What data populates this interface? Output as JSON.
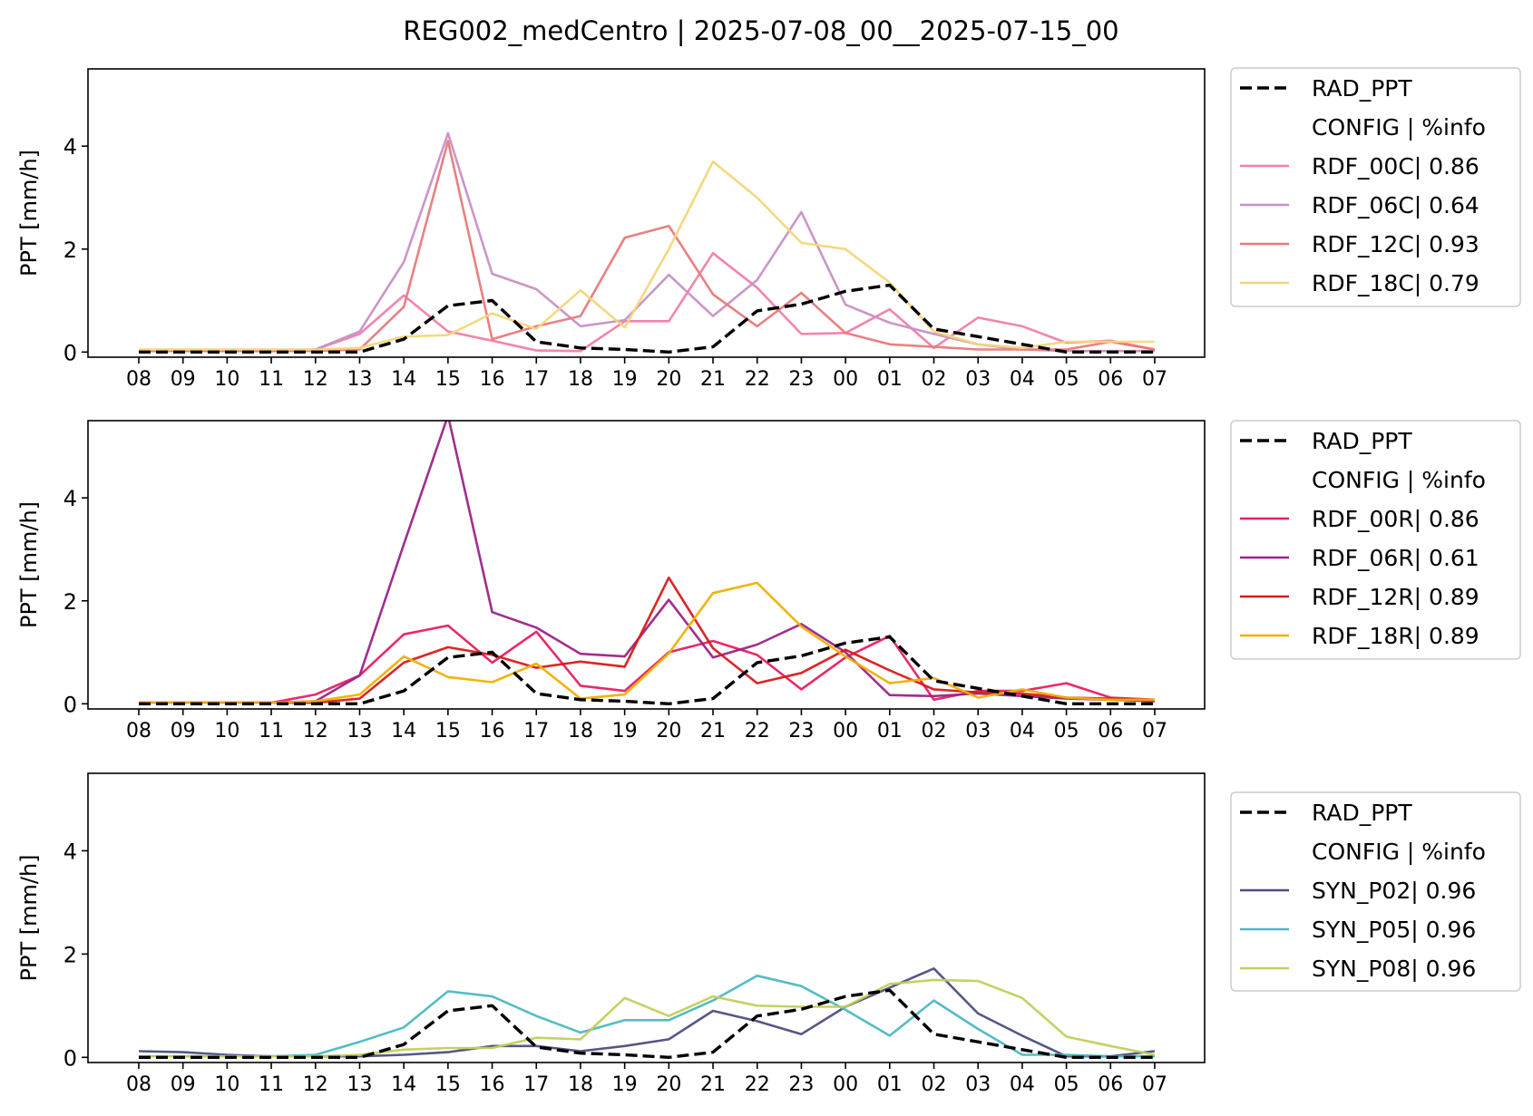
{
  "title": "REG002_medCentro | 2025-07-08_00__2025-07-15_00",
  "chart_data": [
    {
      "type": "line",
      "ylabel": "PPT [mm/h]",
      "ylim": [
        -0.1,
        5.5
      ],
      "yticks": [
        0,
        2,
        4
      ],
      "categories": [
        "08",
        "09",
        "10",
        "11",
        "12",
        "13",
        "14",
        "15",
        "16",
        "17",
        "18",
        "19",
        "20",
        "21",
        "22",
        "23",
        "00",
        "01",
        "02",
        "03",
        "04",
        "05",
        "06",
        "07"
      ],
      "legend_header": "CONFIG  | %info",
      "series": [
        {
          "name": "RAD_PPT",
          "color": "#000000",
          "dashed": true,
          "values": [
            0,
            0,
            0,
            0,
            0,
            0,
            0.25,
            0.9,
            1.0,
            0.2,
            0.08,
            0.05,
            0.0,
            0.1,
            0.8,
            0.93,
            1.18,
            1.3,
            0.45,
            0.3,
            0.15,
            0,
            0,
            0
          ]
        },
        {
          "name": "RDF_00C| 0.86",
          "color": "#f07eaa",
          "dashed": false,
          "values": [
            0.02,
            0.02,
            0.02,
            0.02,
            0.05,
            0.35,
            1.1,
            0.4,
            0.22,
            0.03,
            0.02,
            0.6,
            0.6,
            1.92,
            1.25,
            0.35,
            0.37,
            0.83,
            0.08,
            0.67,
            0.5,
            0.18,
            0.22,
            0.05
          ]
        },
        {
          "name": "RDF_06C| 0.64",
          "color": "#c790c3",
          "dashed": false,
          "values": [
            0.02,
            0.02,
            0.02,
            0.02,
            0.05,
            0.4,
            1.75,
            4.25,
            1.52,
            1.22,
            0.5,
            0.62,
            1.5,
            0.7,
            1.4,
            2.72,
            0.92,
            0.57,
            0.35,
            0.15,
            0.05,
            0.02,
            0.02,
            0.02
          ]
        },
        {
          "name": "RDF_12C| 0.93",
          "color": "#e8797a",
          "dashed": false,
          "values": [
            0.02,
            0.02,
            0.02,
            0.02,
            0.02,
            0.05,
            0.88,
            4.1,
            0.25,
            0.5,
            0.7,
            2.22,
            2.45,
            1.12,
            0.5,
            1.15,
            0.37,
            0.15,
            0.1,
            0.05,
            0.05,
            0.05,
            0.2,
            0.05
          ]
        },
        {
          "name": "RDF_18C| 0.79",
          "color": "#f5d57a",
          "dashed": false,
          "values": [
            0.05,
            0.05,
            0.05,
            0.05,
            0.05,
            0.08,
            0.3,
            0.33,
            0.75,
            0.45,
            1.2,
            0.48,
            2.0,
            3.7,
            3.0,
            2.12,
            2.0,
            1.35,
            0.4,
            0.15,
            0.08,
            0.2,
            0.2,
            0.2
          ]
        }
      ]
    },
    {
      "type": "line",
      "ylabel": "PPT [mm/h]",
      "ylim": [
        -0.1,
        5.5
      ],
      "yticks": [
        0,
        2,
        4
      ],
      "categories": [
        "08",
        "09",
        "10",
        "11",
        "12",
        "13",
        "14",
        "15",
        "16",
        "17",
        "18",
        "19",
        "20",
        "21",
        "22",
        "23",
        "00",
        "01",
        "02",
        "03",
        "04",
        "05",
        "06",
        "07"
      ],
      "legend_header": "CONFIG  | %info",
      "series": [
        {
          "name": "RAD_PPT",
          "color": "#000000",
          "dashed": true,
          "values": [
            0,
            0,
            0,
            0,
            0,
            0,
            0.25,
            0.9,
            1.0,
            0.2,
            0.08,
            0.05,
            0.0,
            0.1,
            0.8,
            0.93,
            1.18,
            1.3,
            0.45,
            0.3,
            0.15,
            0,
            0,
            0
          ]
        },
        {
          "name": "RDF_00R| 0.86",
          "color": "#e81d62",
          "dashed": false,
          "values": [
            0.02,
            0.02,
            0.02,
            0.02,
            0.18,
            0.55,
            1.35,
            1.52,
            0.8,
            1.4,
            0.35,
            0.25,
            1.0,
            1.22,
            0.95,
            0.28,
            0.9,
            1.32,
            0.08,
            0.25,
            0.25,
            0.4,
            0.12,
            0.08
          ]
        },
        {
          "name": "RDF_06R| 0.61",
          "color": "#9b2389",
          "dashed": false,
          "values": [
            0.02,
            0.02,
            0.02,
            0.02,
            0.05,
            0.55,
            3.1,
            5.6,
            1.78,
            1.48,
            0.97,
            0.92,
            2.02,
            0.9,
            1.15,
            1.55,
            1.0,
            0.17,
            0.15,
            0.2,
            0.15,
            0.1,
            0.08,
            0.05
          ]
        },
        {
          "name": "RDF_12R| 0.89",
          "color": "#d91a1a",
          "dashed": false,
          "values": [
            0.02,
            0.02,
            0.02,
            0.02,
            0.02,
            0.1,
            0.8,
            1.1,
            0.95,
            0.7,
            0.82,
            0.72,
            2.45,
            1.08,
            0.4,
            0.6,
            1.05,
            0.65,
            0.28,
            0.22,
            0.2,
            0.12,
            0.1,
            0.08
          ]
        },
        {
          "name": "RDF_18R| 0.89",
          "color": "#f0b000",
          "dashed": false,
          "values": [
            0.02,
            0.02,
            0.02,
            0.02,
            0.05,
            0.18,
            0.92,
            0.52,
            0.42,
            0.78,
            0.1,
            0.18,
            0.98,
            2.15,
            2.35,
            1.5,
            0.92,
            0.4,
            0.5,
            0.12,
            0.28,
            0.12,
            0.08,
            0.08
          ]
        }
      ]
    },
    {
      "type": "line",
      "ylabel": "PPT [mm/h]",
      "ylim": [
        -0.1,
        5.5
      ],
      "yticks": [
        0,
        2,
        4
      ],
      "categories": [
        "08",
        "09",
        "10",
        "11",
        "12",
        "13",
        "14",
        "15",
        "16",
        "17",
        "18",
        "19",
        "20",
        "21",
        "22",
        "23",
        "00",
        "01",
        "02",
        "03",
        "04",
        "05",
        "06",
        "07"
      ],
      "legend_header": "CONFIG  | %info",
      "series": [
        {
          "name": "RAD_PPT",
          "color": "#000000",
          "dashed": true,
          "values": [
            0,
            0,
            0,
            0,
            0,
            0,
            0.25,
            0.9,
            1.0,
            0.2,
            0.08,
            0.05,
            0.0,
            0.1,
            0.8,
            0.93,
            1.18,
            1.3,
            0.45,
            0.3,
            0.15,
            0,
            0,
            0
          ]
        },
        {
          "name": "SYN_P02| 0.96",
          "color": "#4c4e80",
          "dashed": false,
          "values": [
            0.12,
            0.1,
            0.05,
            0.02,
            0.02,
            0.02,
            0.05,
            0.1,
            0.22,
            0.22,
            0.12,
            0.22,
            0.35,
            0.9,
            0.7,
            0.45,
            0.98,
            1.35,
            1.72,
            0.85,
            0.42,
            0.02,
            0.02,
            0.12
          ]
        },
        {
          "name": "SYN_P05| 0.96",
          "color": "#4bb8c3",
          "dashed": false,
          "values": [
            0.02,
            0.02,
            0.02,
            0.02,
            0.05,
            0.3,
            0.58,
            1.28,
            1.18,
            0.8,
            0.48,
            0.72,
            0.72,
            1.1,
            1.58,
            1.38,
            0.92,
            0.42,
            1.1,
            0.55,
            0.05,
            0.05,
            0.02,
            0.02
          ]
        },
        {
          "name": "SYN_P08| 0.96",
          "color": "#c2cf5a",
          "dashed": false,
          "values": [
            0.02,
            0.02,
            0.02,
            0.02,
            0.02,
            0.05,
            0.15,
            0.18,
            0.18,
            0.38,
            0.35,
            1.15,
            0.8,
            1.18,
            1.0,
            0.98,
            0.98,
            1.42,
            1.5,
            1.48,
            1.15,
            0.4,
            0.22,
            0.05
          ]
        }
      ]
    }
  ]
}
